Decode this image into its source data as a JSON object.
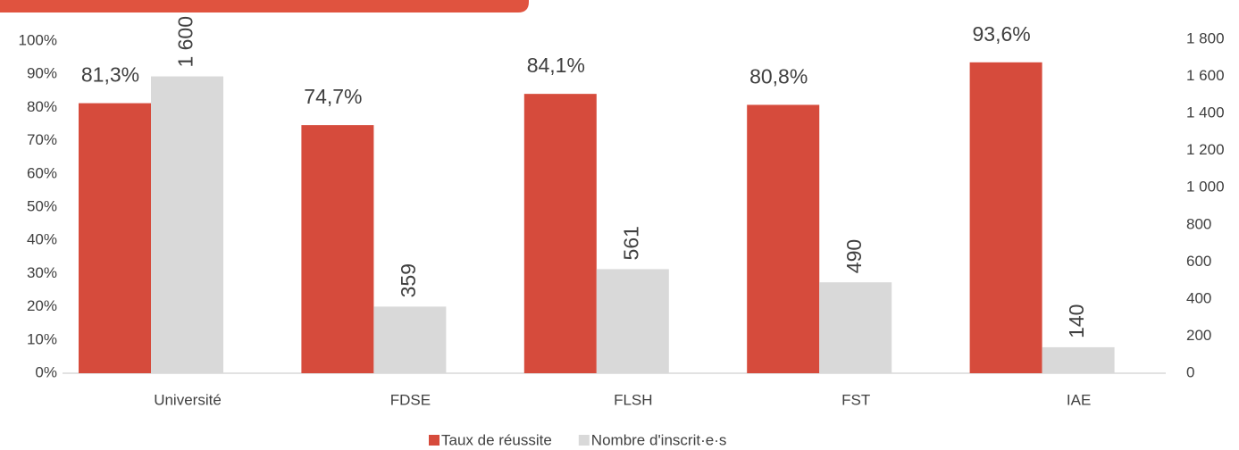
{
  "chart_data": {
    "type": "bar",
    "categories": [
      "Université",
      "FDSE",
      "FLSH",
      "FST",
      "IAE"
    ],
    "series": [
      {
        "name": "Taux de réussite",
        "color": "#d64b3c",
        "values": [
          81.3,
          74.7,
          84.1,
          80.8,
          93.6
        ],
        "value_labels": [
          "81,3%",
          "74,7%",
          "84,1%",
          "80,8%",
          "93,6%"
        ]
      },
      {
        "name": "Nombre d'inscrit·e·s",
        "color": "#d9d9d9",
        "axis": "y2",
        "values": [
          1600,
          359,
          561,
          490,
          140
        ],
        "value_labels": [
          "1 600",
          "359",
          "561",
          "490",
          "140"
        ]
      }
    ],
    "ylim": [
      0,
      100
    ],
    "yticks": [
      {
        "value": 0,
        "label": "0%"
      },
      {
        "value": 10,
        "label": "10%"
      },
      {
        "value": 20,
        "label": "20%"
      },
      {
        "value": 30,
        "label": "30%"
      },
      {
        "value": 40,
        "label": "40%"
      },
      {
        "value": 50,
        "label": "50%"
      },
      {
        "value": 60,
        "label": "60%"
      },
      {
        "value": 70,
        "label": "70%"
      },
      {
        "value": 80,
        "label": "80%"
      },
      {
        "value": 90,
        "label": "90%"
      },
      {
        "value": 100,
        "label": "100%"
      }
    ],
    "y2lim": [
      0,
      1800
    ],
    "y2ticks": [
      0,
      200,
      400,
      600,
      800,
      {
        "value": 1000,
        "label": "1 000"
      },
      {
        "value": 1200,
        "label": "1 200"
      },
      {
        "value": 1400,
        "label": "1 400"
      },
      {
        "value": 1600,
        "label": "1 600"
      },
      {
        "value": 1800,
        "label": "1 800"
      }
    ],
    "legend": "bottom"
  }
}
